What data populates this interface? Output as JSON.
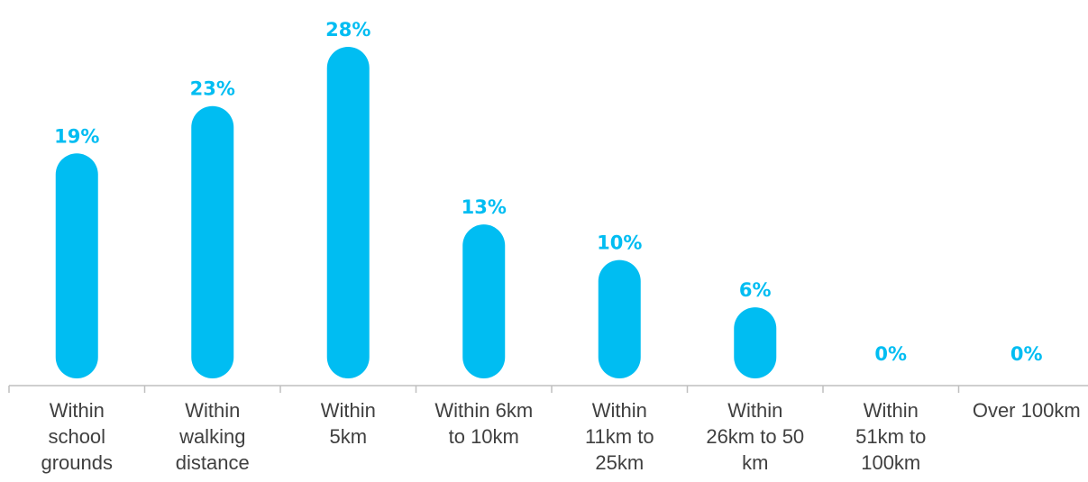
{
  "chart_data": {
    "type": "bar",
    "categories": [
      "Within\nschool\ngrounds",
      "Within\nwalking\ndistance",
      "Within\n5km",
      "Within 6km\nto 10km",
      "Within\n11km to\n25km",
      "Within\n26km to 50\nkm",
      "Within\n51km to\n100km",
      "Over 100km"
    ],
    "values": [
      19,
      23,
      28,
      13,
      10,
      6,
      0,
      0
    ],
    "data_labels": [
      "19%",
      "23%",
      "28%",
      "13%",
      "10%",
      "6%",
      "0%",
      "0%"
    ],
    "title": "",
    "xlabel": "",
    "ylabel": "",
    "ylim": [
      0,
      28
    ],
    "grid": false,
    "legend": "none",
    "colors": {
      "bar": "#00BDF2",
      "label": "#00BDF2",
      "axis": "#BFBFBF",
      "text": "#404040"
    }
  }
}
